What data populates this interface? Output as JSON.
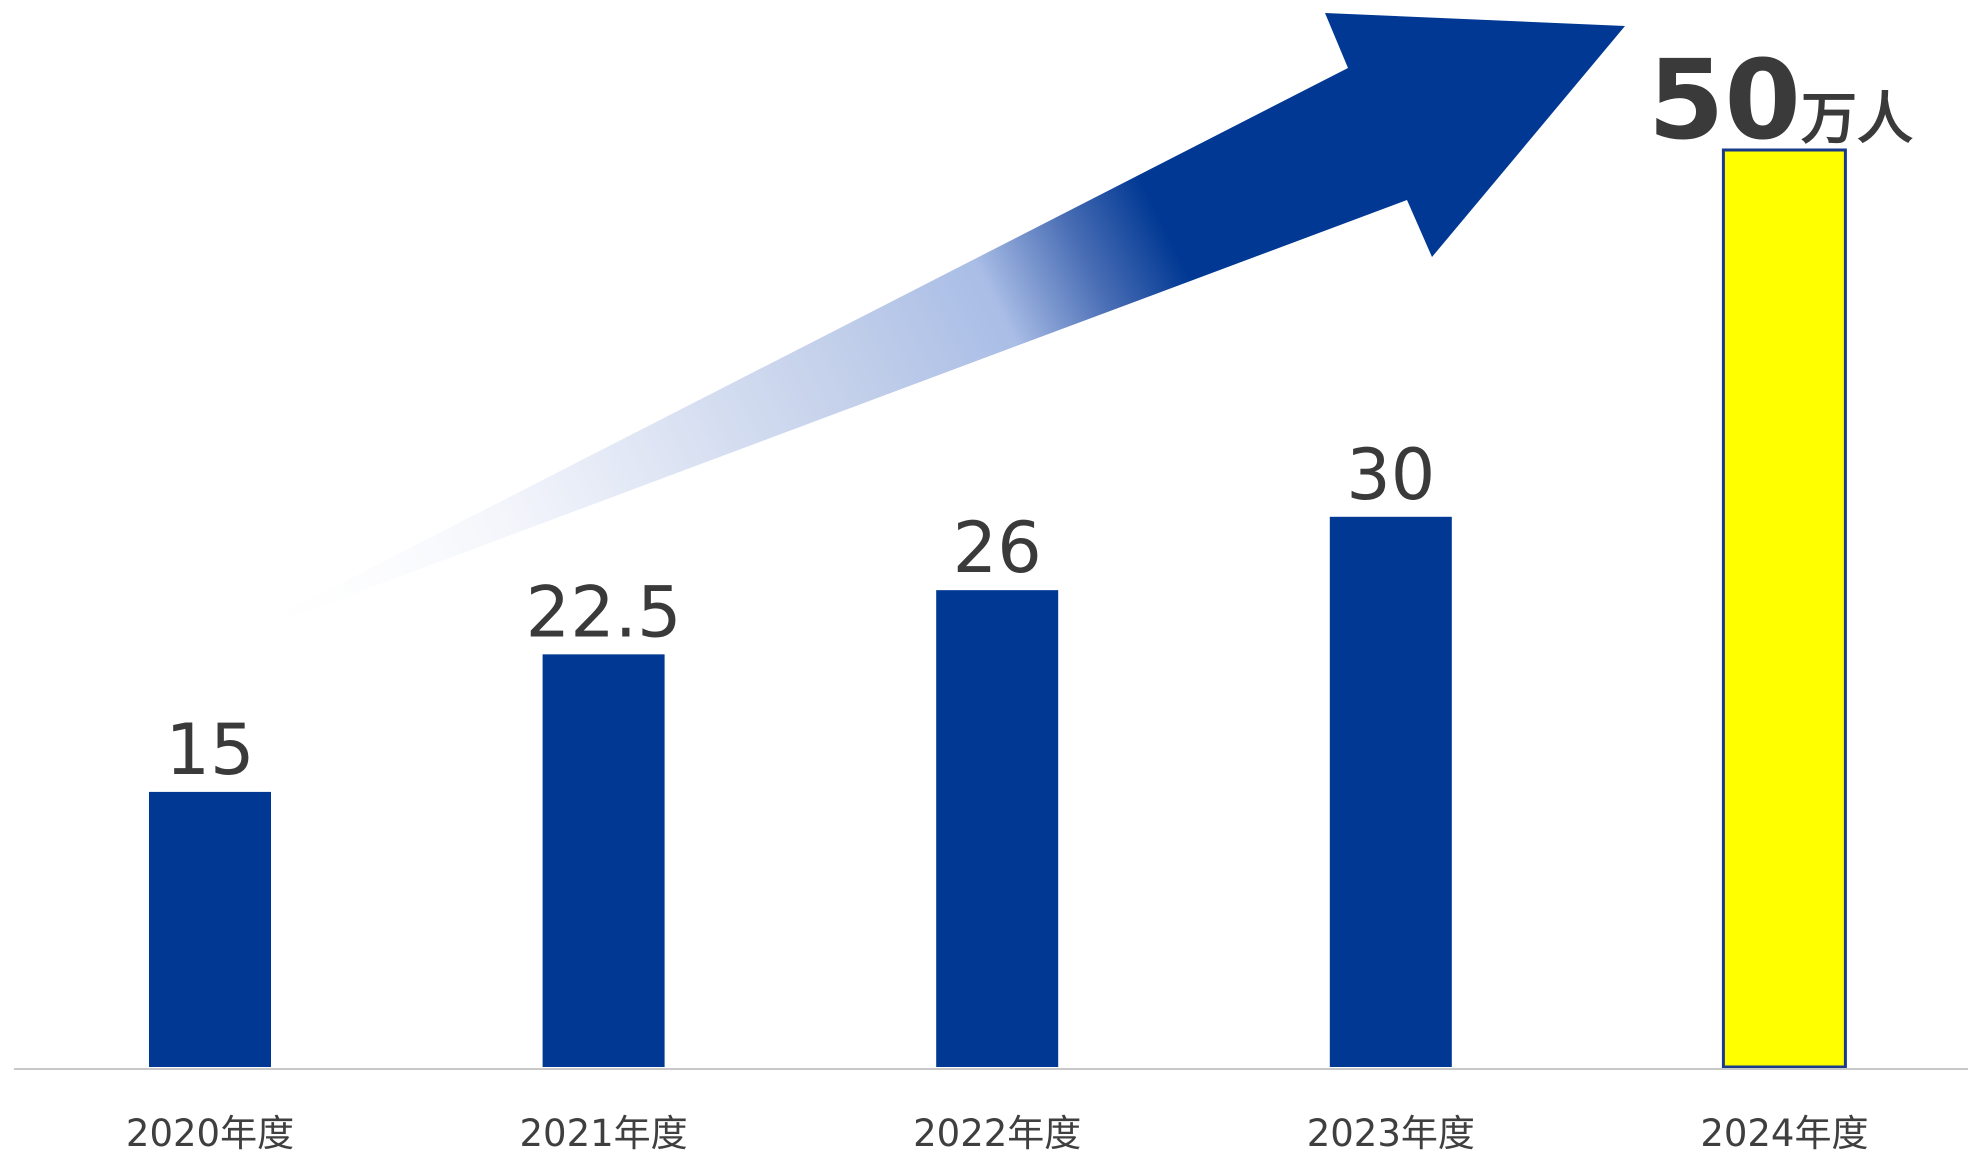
{
  "chart_data": {
    "type": "bar",
    "categories": [
      "2020年度",
      "2021年度",
      "2022年度",
      "2023年度",
      "2024年度"
    ],
    "values": [
      15,
      22.5,
      26,
      30,
      50
    ],
    "data_labels": [
      "15",
      "22.5",
      "26",
      "30",
      "50"
    ],
    "highlight_unit": "万人",
    "title": "",
    "xlabel": "",
    "ylabel": "",
    "grid": false,
    "colors": {
      "bar": "#003893",
      "highlight_bar": "#ffff00",
      "highlight_border": "#1a3a8a",
      "arrow": "#003893",
      "axis": "#c8c8c8",
      "text": "#3a3a3a"
    },
    "annotations": [
      "growth-arrow"
    ]
  }
}
